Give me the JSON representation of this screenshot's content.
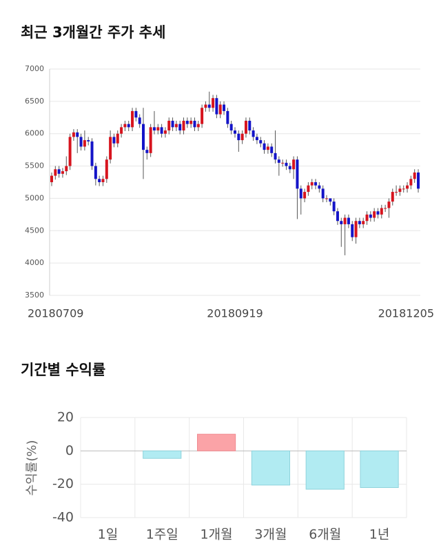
{
  "chart_data": [
    {
      "type": "candlestick",
      "title": "최근 3개월간 주가 추세",
      "categories": [
        "20180709",
        null,
        null,
        null,
        null,
        null,
        null,
        null,
        null,
        null,
        null,
        null,
        null,
        null,
        null,
        null,
        null,
        null,
        null,
        null,
        null,
        null,
        null,
        null,
        null,
        null,
        null,
        null,
        null,
        null,
        null,
        null,
        null,
        null,
        null,
        null,
        null,
        null,
        null,
        null,
        null,
        null,
        null,
        null,
        null,
        null,
        null,
        null,
        null,
        null,
        "20180919",
        null,
        null,
        null,
        null,
        null,
        null,
        null,
        null,
        null,
        null,
        null,
        null,
        null,
        null,
        null,
        null,
        null,
        null,
        null,
        null,
        null,
        null,
        null,
        null,
        null,
        null,
        null,
        null,
        null,
        null,
        null,
        null,
        null,
        null,
        null,
        null,
        null,
        null,
        null,
        null,
        null,
        null,
        null,
        null,
        null,
        null,
        null,
        null,
        null,
        "20181205"
      ],
      "open": [
        5250,
        5350,
        5450,
        5380,
        5420,
        5500,
        5950,
        6020,
        5950,
        5800,
        5900,
        5880,
        5500,
        5300,
        5250,
        5300,
        5600,
        5950,
        5850,
        6000,
        6100,
        6150,
        6100,
        6350,
        6250,
        6150,
        5750,
        5700,
        6100,
        6050,
        6100,
        6000,
        6050,
        6200,
        6100,
        6150,
        6050,
        6200,
        6150,
        6200,
        6100,
        6150,
        6400,
        6450,
        6400,
        6550,
        6300,
        6450,
        6350,
        6150,
        6050,
        6000,
        5900,
        6000,
        6200,
        6050,
        5950,
        5900,
        5850,
        5750,
        5800,
        5700,
        5600,
        5550,
        5550,
        5500,
        5450,
        5600,
        5150,
        5000,
        5100,
        5200,
        5250,
        5200,
        5150,
        5000,
        5000,
        4950,
        4800,
        4650,
        4600,
        4700,
        4600,
        4400,
        4650,
        4600,
        4650,
        4750,
        4700,
        4800,
        4750,
        4850,
        4850,
        4950,
        5100,
        5100,
        5150,
        5150,
        5200,
        5300,
        5400
      ],
      "high": [
        5400,
        5500,
        5500,
        5470,
        5650,
        6000,
        6070,
        6070,
        6000,
        6050,
        5950,
        5930,
        5550,
        5350,
        5350,
        5650,
        6050,
        6000,
        6050,
        6150,
        6200,
        6200,
        6400,
        6400,
        6300,
        6400,
        5800,
        6150,
        6350,
        6150,
        6150,
        6100,
        6250,
        6250,
        6200,
        6200,
        6250,
        6250,
        6250,
        6250,
        6200,
        6450,
        6500,
        6650,
        6600,
        6600,
        6500,
        6500,
        6400,
        6200,
        6100,
        6050,
        6050,
        6250,
        6250,
        6100,
        6000,
        5950,
        5900,
        5850,
        5850,
        6050,
        5650,
        5600,
        5600,
        5550,
        5650,
        5650,
        5200,
        5150,
        5250,
        5300,
        5300,
        5250,
        5200,
        5050,
        5000,
        5000,
        4850,
        4700,
        4750,
        4750,
        4650,
        4700,
        4700,
        4700,
        4800,
        4800,
        4850,
        4850,
        4900,
        4900,
        5000,
        5150,
        5200,
        5200,
        5200,
        5250,
        5350,
        5450,
        5450
      ],
      "low": [
        5190,
        5290,
        5320,
        5320,
        5360,
        5440,
        5890,
        5700,
        5740,
        5740,
        5820,
        5440,
        5200,
        5190,
        5190,
        5240,
        5540,
        5790,
        5790,
        5940,
        6040,
        6040,
        6040,
        6190,
        6090,
        5300,
        5600,
        5640,
        5990,
        5990,
        5940,
        5940,
        5990,
        6040,
        6040,
        5990,
        5990,
        6090,
        6090,
        6040,
        6040,
        6090,
        6340,
        6340,
        6340,
        6240,
        6240,
        6290,
        6090,
        5990,
        5940,
        5720,
        5840,
        5940,
        5990,
        5890,
        5840,
        5790,
        5690,
        5690,
        5640,
        5540,
        5350,
        5490,
        5440,
        5390,
        5300,
        4680,
        4750,
        4940,
        5040,
        5140,
        5140,
        5090,
        4940,
        4940,
        4890,
        4740,
        4590,
        4250,
        4120,
        4540,
        4340,
        4300,
        4540,
        4540,
        4590,
        4640,
        4640,
        4690,
        4690,
        4790,
        4700,
        4890,
        5040,
        5040,
        5090,
        5090,
        5140,
        5240,
        5090
      ],
      "close": [
        5350,
        5450,
        5380,
        5420,
        5500,
        5950,
        6020,
        5950,
        5800,
        5900,
        5880,
        5500,
        5300,
        5250,
        5300,
        5600,
        5950,
        5850,
        6000,
        6100,
        6150,
        6100,
        6350,
        6250,
        6150,
        5750,
        5700,
        6100,
        6050,
        6100,
        6000,
        6050,
        6200,
        6100,
        6150,
        6050,
        6200,
        6150,
        6200,
        6100,
        6150,
        6400,
        6450,
        6400,
        6550,
        6300,
        6450,
        6350,
        6150,
        6050,
        6000,
        5900,
        6000,
        6200,
        6050,
        5950,
        5900,
        5850,
        5750,
        5800,
        5700,
        5600,
        5550,
        5550,
        5500,
        5450,
        5600,
        5150,
        5000,
        5100,
        5200,
        5250,
        5200,
        5150,
        5000,
        5000,
        4950,
        4800,
        4650,
        4600,
        4700,
        4600,
        4400,
        4650,
        4600,
        4650,
        4750,
        4700,
        4800,
        4750,
        4850,
        4850,
        4950,
        5100,
        5100,
        5150,
        5150,
        5200,
        5300,
        5400,
        5150
      ],
      "up_color": "#d7141e",
      "down_color": "#1414c8",
      "ylim": [
        3500,
        7000
      ],
      "yticks": [
        3500,
        4000,
        4500,
        5000,
        5500,
        6000,
        6500,
        7000
      ],
      "grid": true
    },
    {
      "type": "bar",
      "title": "기간별 수익률",
      "ylabel": "수익률(%)",
      "categories": [
        "1일",
        "1주일",
        "1개월",
        "3개월",
        "6개월",
        "1년"
      ],
      "values": [
        0,
        -4.5,
        10,
        -20.5,
        -23,
        -22
      ],
      "positive_color": "#fba3a7",
      "negative_color": "#b1ebf2",
      "ylim": [
        -40,
        20
      ],
      "yticks": [
        -40,
        -20,
        0,
        20
      ],
      "grid": true
    }
  ]
}
